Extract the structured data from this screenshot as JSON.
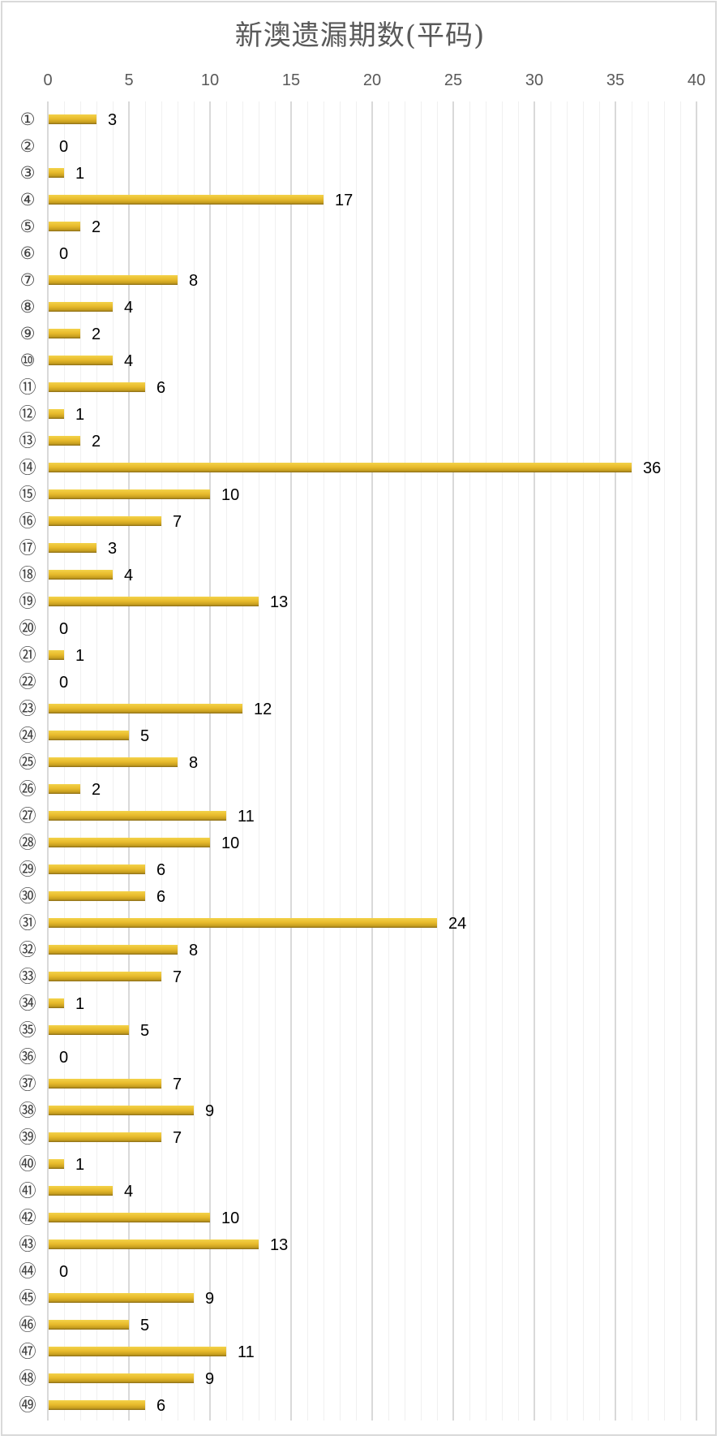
{
  "chart_data": {
    "type": "bar",
    "orientation": "horizontal",
    "title": "新澳遗漏期数(平码)",
    "xlabel": "",
    "ylabel": "",
    "xlim": [
      0,
      40
    ],
    "x_ticks": [
      0,
      5,
      10,
      15,
      20,
      25,
      30,
      35,
      40
    ],
    "grid": "vertical major every 5, minor every 1",
    "legend": "none",
    "bar_color": "#e8bb2c",
    "categories": [
      "①",
      "②",
      "③",
      "④",
      "⑤",
      "⑥",
      "⑦",
      "⑧",
      "⑨",
      "⑩",
      "⑪",
      "⑫",
      "⑬",
      "⑭",
      "⑮",
      "⑯",
      "⑰",
      "⑱",
      "⑲",
      "⑳",
      "㉑",
      "㉒",
      "㉓",
      "㉔",
      "㉕",
      "㉖",
      "㉗",
      "㉘",
      "㉙",
      "㉚",
      "㉛",
      "㉜",
      "㉝",
      "㉞",
      "㉟",
      "㊱",
      "㊲",
      "㊳",
      "㊴",
      "㊵",
      "㊶",
      "㊷",
      "㊸",
      "㊹",
      "㊺",
      "㊻",
      "㊼",
      "㊽",
      "㊾"
    ],
    "values": [
      3,
      0,
      1,
      17,
      2,
      0,
      8,
      4,
      2,
      4,
      6,
      1,
      2,
      36,
      10,
      7,
      3,
      4,
      13,
      0,
      1,
      0,
      12,
      5,
      8,
      2,
      11,
      10,
      6,
      6,
      24,
      8,
      7,
      1,
      5,
      0,
      7,
      9,
      7,
      1,
      4,
      10,
      13,
      0,
      9,
      5,
      11,
      9,
      6
    ]
  }
}
